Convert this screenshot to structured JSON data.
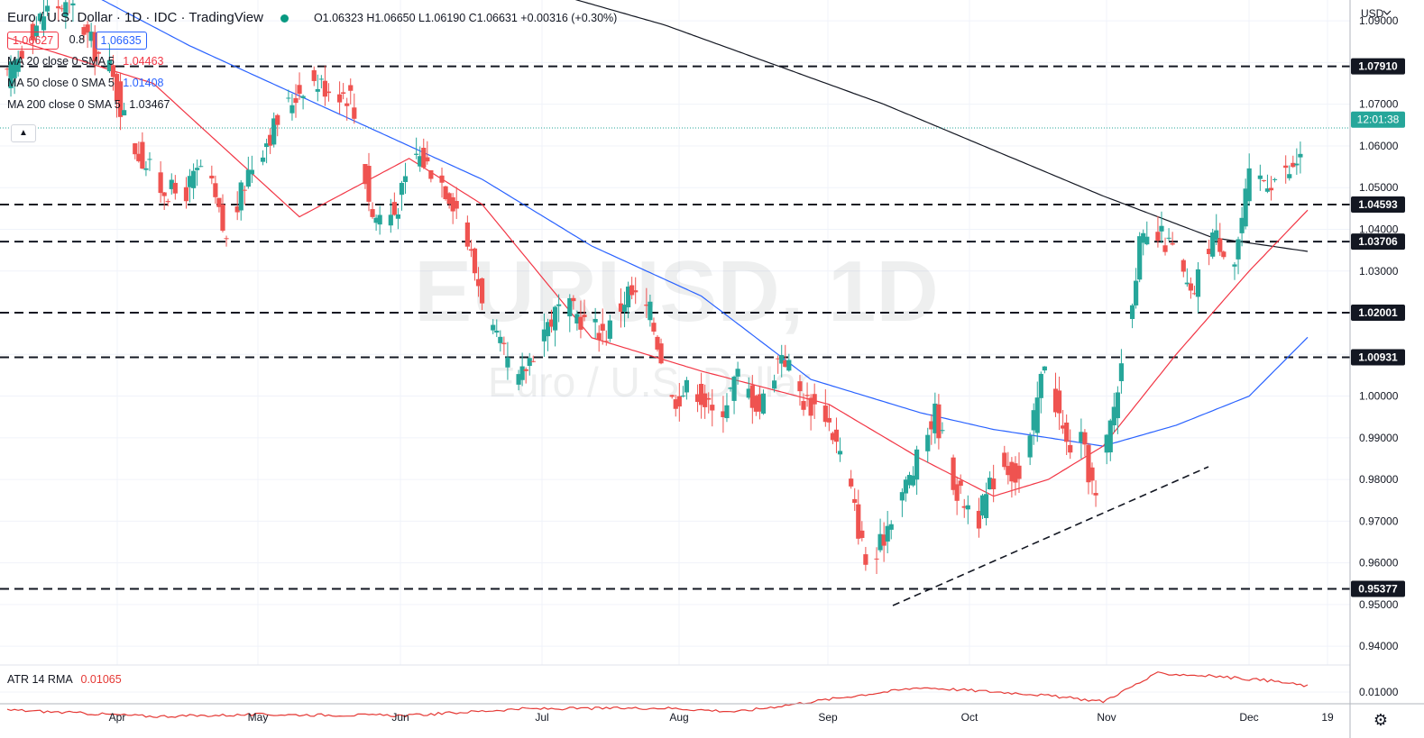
{
  "header": {
    "symbol_title": "Euro / U.S. Dollar · 1D · IDC · TradingView",
    "ohlc_text": "O1.06323  H1.06650  L1.06190  C1.06631  +0.00316 (+0.30%)",
    "sell_price": "1.06627",
    "spread": "0.8",
    "buy_price": "1.06635"
  },
  "indicators": {
    "ma20_label": "MA 20 close 0 SMA 5",
    "ma20_value": "1.04463",
    "ma50_label": "MA 50 close 0 SMA 5",
    "ma50_value": "1.01408",
    "ma200_label": "MA 200 close 0 SMA 5",
    "ma200_value": "1.03467",
    "atr_label": "ATR 14 RMA",
    "atr_value": "0.01065"
  },
  "watermark": {
    "main": "EURUSD, 1D",
    "sub": "Euro / U.S. Dollar"
  },
  "currency_label": "USD",
  "countdown": "12:01:38",
  "colors": {
    "up": "#26a69a",
    "down": "#ef5350",
    "ma20": "#f23645",
    "ma50": "#2962ff",
    "ma200": "#131722",
    "atr": "#e53935",
    "level_bg": "#131722"
  },
  "chart_data": {
    "type": "candlestick",
    "title": "Euro / U.S. Dollar · 1D · IDC · TradingView",
    "price_axis": {
      "ticks": [
        "1.09000",
        "1.08000",
        "1.07000",
        "1.06000",
        "1.05000",
        "1.04000",
        "1.03000",
        "1.02000",
        "1.01000",
        "1.00000",
        "0.99000",
        "0.98000",
        "0.97000",
        "0.96000",
        "0.95000",
        "0.94000"
      ],
      "range": [
        0.9355,
        1.095
      ]
    },
    "time_axis": {
      "labels": [
        "Apr",
        "May",
        "Jun",
        "Jul",
        "Aug",
        "Sep",
        "Oct",
        "Nov",
        "Dec",
        "19"
      ]
    },
    "horizontal_levels": [
      "1.07910",
      "1.04593",
      "1.03706",
      "1.02001",
      "1.00931",
      "0.95377"
    ],
    "last_price": "1.06631",
    "trendline": {
      "start_price": 0.948,
      "end_price": 0.982
    },
    "ohlc_anchor_closes": [
      [
        0,
        1.076
      ],
      [
        6,
        1.087
      ],
      [
        12,
        1.094
      ],
      [
        18,
        1.093
      ],
      [
        24,
        1.083
      ],
      [
        28,
        1.0785
      ],
      [
        34,
        1.061
      ],
      [
        42,
        1.05
      ],
      [
        48,
        1.048
      ],
      [
        54,
        1.056
      ],
      [
        60,
        1.037
      ],
      [
        66,
        1.054
      ],
      [
        74,
        1.066
      ],
      [
        82,
        1.076
      ],
      [
        88,
        1.074
      ],
      [
        94,
        1.072
      ],
      [
        100,
        1.043
      ],
      [
        106,
        1.044
      ],
      [
        112,
        1.058
      ],
      [
        118,
        1.053
      ],
      [
        124,
        1.044
      ],
      [
        128,
        1.03
      ],
      [
        134,
        1.013
      ],
      [
        140,
        1.003
      ],
      [
        146,
        1.015
      ],
      [
        152,
        1.022
      ],
      [
        158,
        1.018
      ],
      [
        164,
        1.015
      ],
      [
        170,
        1.025
      ],
      [
        176,
        1.02
      ],
      [
        182,
        0.999
      ],
      [
        188,
        1.003
      ],
      [
        194,
        0.994
      ],
      [
        200,
        1.005
      ],
      [
        206,
        0.997
      ],
      [
        212,
        1.011
      ],
      [
        218,
        0.999
      ],
      [
        224,
        0.996
      ],
      [
        230,
        0.981
      ],
      [
        236,
        0.956
      ],
      [
        242,
        0.972
      ],
      [
        248,
        0.982
      ],
      [
        254,
        0.996
      ],
      [
        260,
        0.977
      ],
      [
        266,
        0.971
      ],
      [
        272,
        0.985
      ],
      [
        278,
        0.979
      ],
      [
        284,
        1.009
      ],
      [
        290,
        0.988
      ],
      [
        294,
        0.989
      ],
      [
        298,
        0.975
      ],
      [
        304,
        1.002
      ],
      [
        310,
        1.036
      ],
      [
        316,
        1.038
      ],
      [
        320,
        1.034
      ],
      [
        324,
        1.023
      ],
      [
        330,
        1.039
      ],
      [
        336,
        1.033
      ],
      [
        340,
        1.052
      ],
      [
        346,
        1.052
      ],
      [
        352,
        1.054
      ],
      [
        356,
        1.063
      ]
    ],
    "ma_anchors": {
      "ma20": [
        [
          0,
          1.086
        ],
        [
          40,
          1.075
        ],
        [
          80,
          1.043
        ],
        [
          110,
          1.057
        ],
        [
          130,
          1.046
        ],
        [
          160,
          1.014
        ],
        [
          190,
          1.006
        ],
        [
          225,
          0.998
        ],
        [
          250,
          0.985
        ],
        [
          270,
          0.976
        ],
        [
          285,
          0.98
        ],
        [
          300,
          0.988
        ],
        [
          320,
          1.01
        ],
        [
          340,
          1.03
        ],
        [
          356,
          1.0446
        ]
      ],
      "ma50": [
        [
          0,
          1.107
        ],
        [
          50,
          1.084
        ],
        [
          90,
          1.068
        ],
        [
          130,
          1.052
        ],
        [
          160,
          1.036
        ],
        [
          190,
          1.024
        ],
        [
          220,
          1.004
        ],
        [
          250,
          0.996
        ],
        [
          270,
          0.992
        ],
        [
          300,
          0.988
        ],
        [
          320,
          0.993
        ],
        [
          340,
          1.0
        ],
        [
          356,
          1.0141
        ]
      ],
      "ma200": [
        [
          0,
          1.121
        ],
        [
          60,
          1.114
        ],
        [
          120,
          1.104
        ],
        [
          180,
          1.089
        ],
        [
          240,
          1.07
        ],
        [
          300,
          1.048
        ],
        [
          330,
          1.038
        ],
        [
          356,
          1.0347
        ]
      ]
    },
    "atr_anchors": [
      [
        0,
        0.0081
      ],
      [
        40,
        0.0074
      ],
      [
        70,
        0.0076
      ],
      [
        110,
        0.0075
      ],
      [
        140,
        0.0082
      ],
      [
        180,
        0.0083
      ],
      [
        200,
        0.0079
      ],
      [
        230,
        0.0095
      ],
      [
        250,
        0.0105
      ],
      [
        280,
        0.0098
      ],
      [
        300,
        0.009
      ],
      [
        315,
        0.012
      ],
      [
        330,
        0.0117
      ],
      [
        346,
        0.0112
      ],
      [
        356,
        0.01065
      ]
    ]
  }
}
